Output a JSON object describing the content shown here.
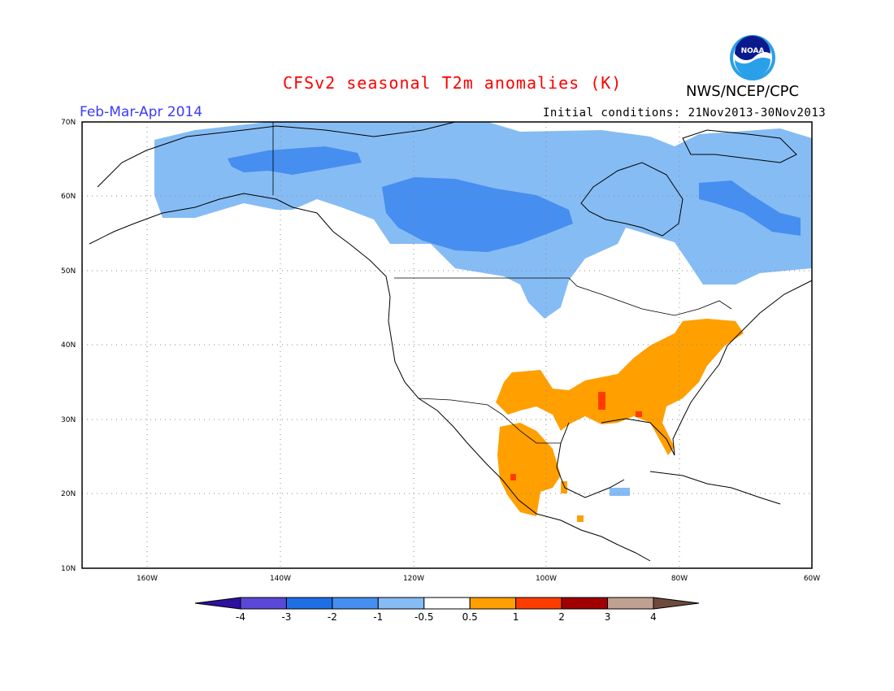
{
  "header": {
    "title": "CFSv2 seasonal T2m anomalies (K)",
    "period": "Feb-Mar-Apr 2014",
    "initial_conditions": "Initial conditions: 21Nov2013-30Nov2013",
    "agency": "NWS/NCEP/CPC",
    "logo_text": "NOAA"
  },
  "map": {
    "lat_labels": [
      "70N",
      "60N",
      "50N",
      "40N",
      "30N",
      "20N",
      "10N"
    ],
    "lon_labels": [
      "160W",
      "140W",
      "120W",
      "100W",
      "80W",
      "60W"
    ],
    "extent": {
      "lon_min": -172,
      "lon_max": -60,
      "lat_min": 10,
      "lat_max": 70
    }
  },
  "colorbar": {
    "colors": [
      "#2f10a0",
      "#5a48d8",
      "#1e6ee6",
      "#468ef0",
      "#86bcf4",
      "#ffffff",
      "#ff9f00",
      "#ff3c00",
      "#a00000",
      "#c0a090",
      "#6e4a3c"
    ],
    "labels": [
      "-4",
      "-3",
      "-2",
      "-1",
      "-0.5",
      "0.5",
      "1",
      "2",
      "3",
      "4"
    ]
  }
}
